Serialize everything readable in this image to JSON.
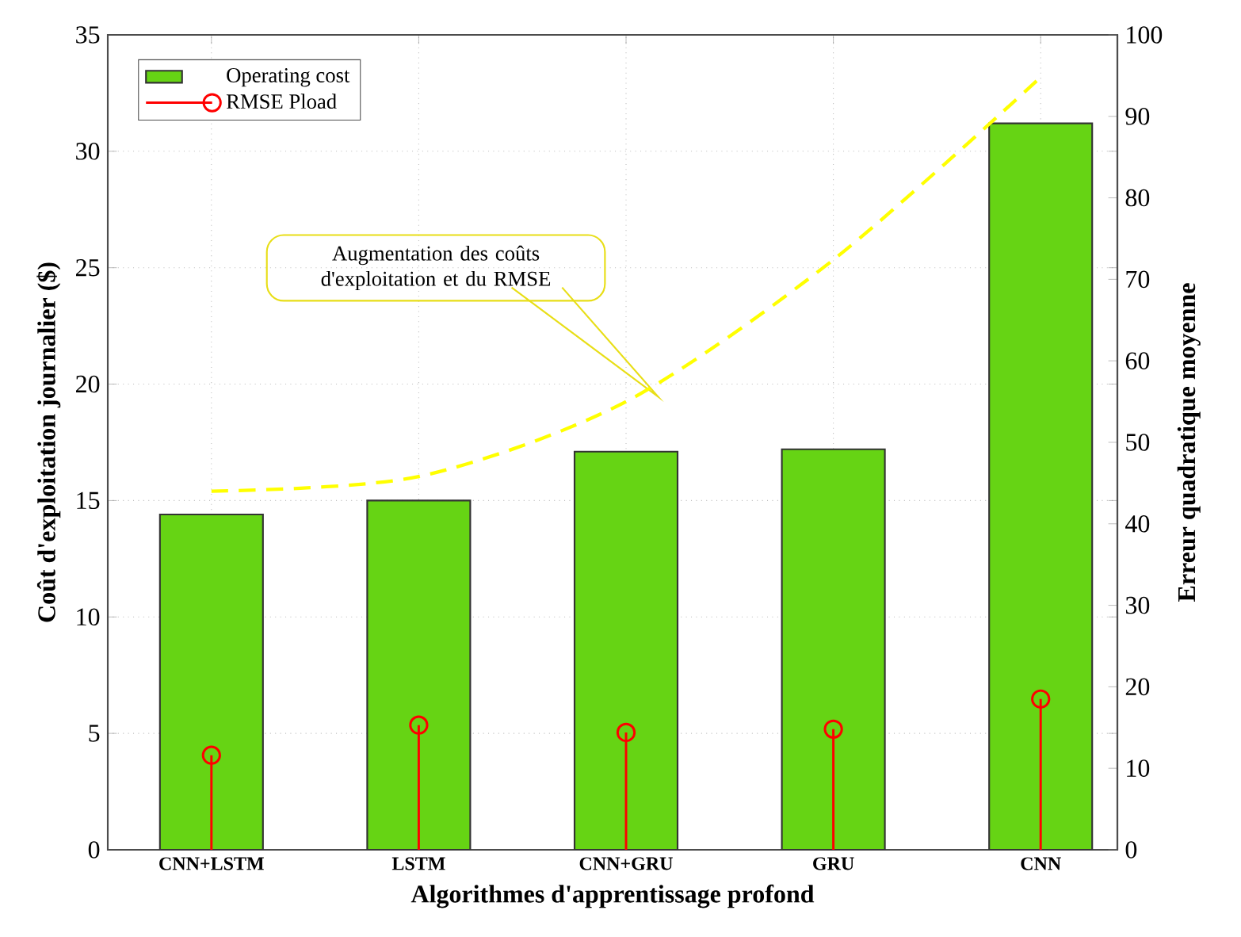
{
  "chart_data": {
    "type": "bar",
    "xlabel": "Algorithmes d'apprentissage profond",
    "ylabel": "Coût d'exploitation journalier ($)",
    "y2label": "Erreur quadratique moyenne",
    "categories": [
      "CNN+LSTM",
      "LSTM",
      "CNN+GRU",
      "GRU",
      "CNN"
    ],
    "series": [
      {
        "name": "Operating cost",
        "color": "#66d414",
        "values": [
          14.4,
          15.0,
          17.1,
          17.2,
          31.2
        ]
      },
      {
        "name": "RMSE Pload",
        "type": "lollipop",
        "axis": "y2",
        "marker": "circle",
        "color": "#ff0000",
        "values": [
          11.6,
          15.3,
          14.4,
          14.8,
          18.5
        ]
      },
      {
        "type": "line",
        "axis": "y2",
        "line_style": "dashed",
        "color": "#ffff00",
        "values": [
          44,
          45.8,
          55,
          72.4,
          94.8
        ]
      }
    ],
    "ylim": [
      0,
      35
    ],
    "yticks": [
      0,
      5,
      10,
      15,
      20,
      25,
      30,
      35
    ],
    "y2lim": [
      0,
      100
    ],
    "y2ticks": [
      0,
      10,
      20,
      30,
      40,
      50,
      60,
      70,
      80,
      90,
      100
    ],
    "grid": true,
    "legend": "top left",
    "annotations": [
      "Augmentation des coûts d'exploitation et du RMSE"
    ]
  }
}
